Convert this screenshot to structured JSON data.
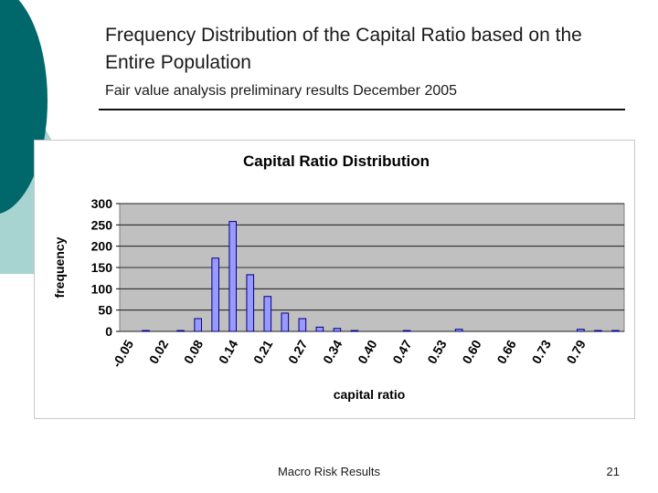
{
  "slide": {
    "title": "Frequency Distribution of the Capital Ratio based on the Entire Population",
    "subtitle": "Fair value analysis preliminary results December 2005",
    "footer": "Macro Risk Results",
    "page_number": "21"
  },
  "colors": {
    "plot_bg": "#c0c0c0",
    "bar_fill": "#9999ff",
    "bar_stroke": "#000080",
    "deco_teal": "#00676b",
    "deco_light_teal": "#a7d3d1"
  },
  "chart_data": {
    "type": "bar",
    "title": "Capital Ratio Distribution",
    "xlabel": "capital ratio",
    "ylabel": "frequency",
    "ylim": [
      0,
      300
    ],
    "yticks": [
      0,
      50,
      100,
      150,
      200,
      250,
      300
    ],
    "grid": true,
    "legend": "none",
    "tick_labels": [
      "-0.05",
      "0.02",
      "0.08",
      "0.14",
      "0.21",
      "0.27",
      "0.34",
      "0.40",
      "0.47",
      "0.53",
      "0.60",
      "0.66",
      "0.73",
      "0.79"
    ],
    "values": [
      0,
      2,
      0,
      2,
      30,
      172,
      258,
      133,
      82,
      43,
      30,
      10,
      7,
      2,
      0,
      0,
      2,
      0,
      0,
      5,
      0,
      0,
      0,
      0,
      0,
      0,
      5,
      2,
      2
    ]
  }
}
